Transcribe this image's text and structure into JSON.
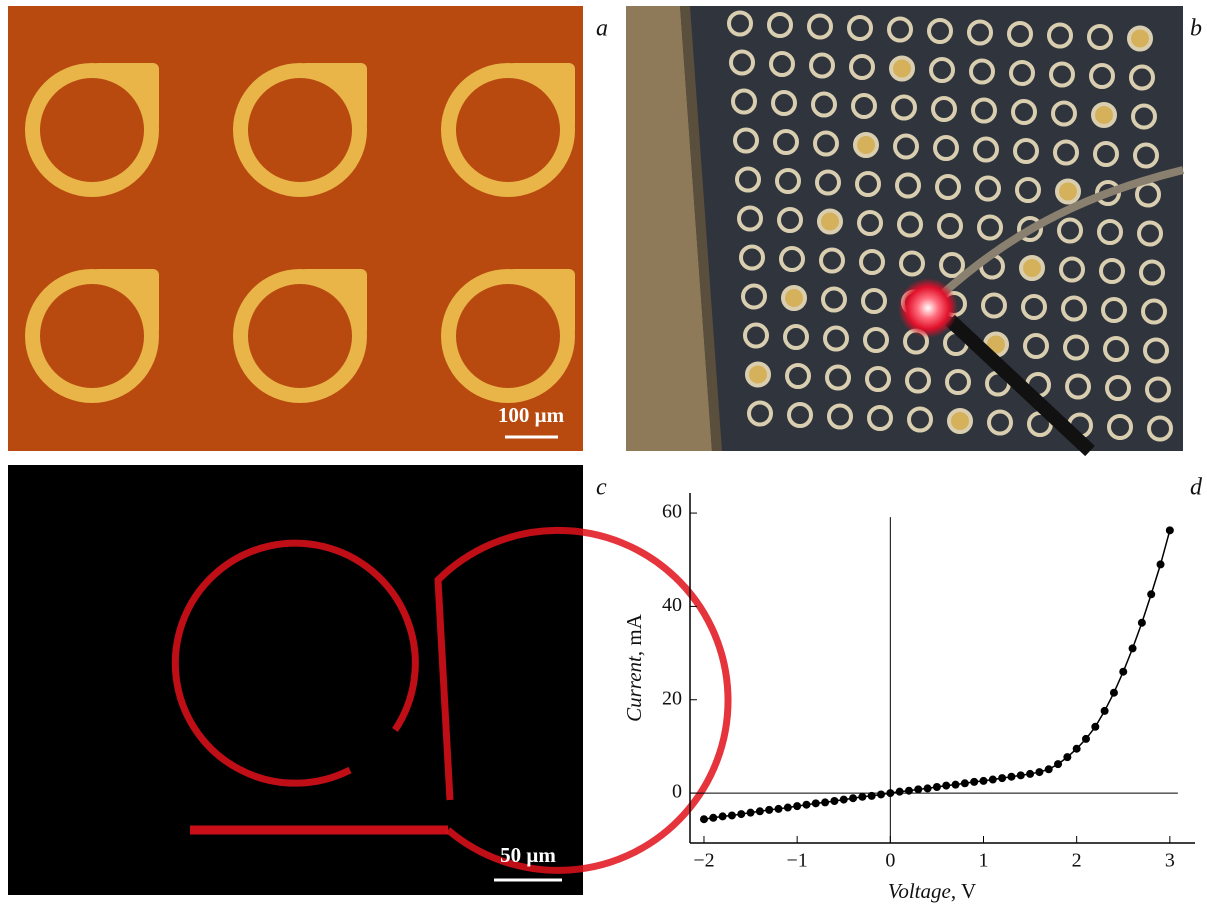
{
  "panels": {
    "a": {
      "label": "a",
      "scale_bar": "100 μm"
    },
    "b": {
      "label": "b"
    },
    "c": {
      "label": "c",
      "scale_bar": "50 μm"
    },
    "d": {
      "label": "d"
    }
  },
  "chart_data": {
    "type": "line",
    "x_label": {
      "name": "Voltage",
      "unit": ", V"
    },
    "y_label": {
      "name": "Current",
      "unit": ", mA"
    },
    "x": [
      -2.0,
      -1.9,
      -1.8,
      -1.7,
      -1.6,
      -1.5,
      -1.4,
      -1.3,
      -1.2,
      -1.1,
      -1.0,
      -0.9,
      -0.8,
      -0.7,
      -0.6,
      -0.5,
      -0.4,
      -0.3,
      -0.2,
      -0.1,
      0,
      0.1,
      0.2,
      0.3,
      0.4,
      0.5,
      0.6,
      0.7,
      0.8,
      0.9,
      1.0,
      1.1,
      1.2,
      1.3,
      1.4,
      1.5,
      1.6,
      1.7,
      1.8,
      1.9,
      2.0,
      2.1,
      2.2,
      2.3,
      2.4,
      2.5,
      2.6,
      2.7,
      2.8,
      2.9,
      3.0
    ],
    "series": [
      {
        "color": "#000000",
        "values": [
          -5.6,
          -5.3,
          -5.0,
          -4.8,
          -4.5,
          -4.2,
          -3.9,
          -3.6,
          -3.4,
          -3.1,
          -2.8,
          -2.5,
          -2.2,
          -2.0,
          -1.7,
          -1.4,
          -1.1,
          -0.8,
          -0.6,
          -0.3,
          0,
          0.3,
          0.5,
          0.8,
          1.0,
          1.3,
          1.6,
          1.8,
          2.1,
          2.4,
          2.6,
          2.9,
          3.2,
          3.5,
          3.8,
          4.1,
          4.5,
          5.1,
          6.2,
          7.7,
          9.5,
          11.6,
          14.2,
          17.6,
          21.5,
          26,
          31,
          36.5,
          42.6,
          49,
          56.3
        ]
      }
    ],
    "xlim": [
      -2.15,
      3.27
    ],
    "ylim": [
      -10.7,
      64.3
    ],
    "xticks": [
      {
        "value": -2,
        "label": "−2"
      },
      {
        "value": -1,
        "label": "−1"
      },
      0,
      1,
      2,
      3
    ],
    "yticks": [
      0,
      20,
      40,
      60
    ]
  }
}
